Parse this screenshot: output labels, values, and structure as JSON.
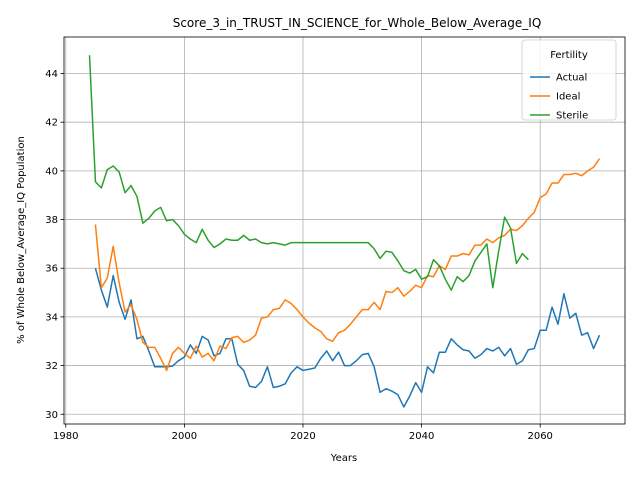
{
  "chart_data": {
    "type": "line",
    "title": "Score_3_in_TRUST_IN_SCIENCE_for_Whole_Below_Average_IQ",
    "xlabel": "Years",
    "ylabel": "% of Whole Below_Average_IQ Population",
    "xlim": [
      1979.7,
      2074.3
    ],
    "ylim": [
      29.6,
      45.5
    ],
    "xticks": [
      1980,
      2000,
      2020,
      2040,
      2060
    ],
    "yticks": [
      30,
      32,
      34,
      36,
      38,
      40,
      42,
      44
    ],
    "grid": true,
    "legend": {
      "title": "Fertility",
      "position": "upper right"
    },
    "series": [
      {
        "name": "Actual",
        "color": "#1f77b4",
        "x": [
          1985,
          1986,
          1987,
          1988,
          1989,
          1990,
          1991,
          1992,
          1993,
          1994,
          1995,
          1996,
          1997,
          1998,
          1999,
          2000,
          2001,
          2002,
          2003,
          2004,
          2005,
          2006,
          2007,
          2008,
          2009,
          2010,
          2011,
          2012,
          2013,
          2014,
          2015,
          2016,
          2017,
          2018,
          2019,
          2020,
          2021,
          2022,
          2023,
          2024,
          2025,
          2026,
          2027,
          2028,
          2029,
          2030,
          2031,
          2032,
          2033,
          2034,
          2035,
          2036,
          2037,
          2038,
          2039,
          2040,
          2041,
          2042,
          2043,
          2044,
          2045,
          2046,
          2047,
          2048,
          2049,
          2050,
          2051,
          2052,
          2053,
          2054,
          2055,
          2056,
          2057,
          2058,
          2059,
          2060,
          2061,
          2062,
          2063,
          2064,
          2065,
          2066,
          2067,
          2068,
          2069,
          2070
        ],
        "y": [
          36.0,
          35.1,
          34.4,
          35.7,
          34.6,
          33.9,
          34.7,
          33.1,
          33.2,
          32.6,
          31.95,
          31.95,
          31.95,
          31.98,
          32.2,
          32.35,
          32.85,
          32.5,
          33.2,
          33.05,
          32.4,
          32.5,
          33.1,
          33.1,
          32.05,
          31.8,
          31.15,
          31.1,
          31.35,
          31.95,
          31.1,
          31.15,
          31.25,
          31.7,
          31.95,
          31.8,
          31.85,
          31.9,
          32.3,
          32.6,
          32.2,
          32.55,
          32.0,
          32.0,
          32.2,
          32.45,
          32.5,
          31.95,
          30.9,
          31.05,
          30.95,
          30.8,
          30.3,
          30.75,
          31.3,
          30.9,
          31.95,
          31.7,
          32.55,
          32.55,
          33.1,
          32.85,
          32.65,
          32.6,
          32.3,
          32.45,
          32.7,
          32.6,
          32.75,
          32.4,
          32.7,
          32.05,
          32.2,
          32.65,
          32.7,
          33.45,
          33.45,
          34.4,
          33.7,
          34.95,
          33.95,
          34.15,
          33.25,
          33.35,
          32.7,
          33.25
        ]
      },
      {
        "name": "Ideal",
        "color": "#ff7f0e",
        "x": [
          1985,
          1986,
          1987,
          1988,
          1989,
          1990,
          1991,
          1992,
          1993,
          1994,
          1995,
          1996,
          1997,
          1998,
          1999,
          2000,
          2001,
          2002,
          2003,
          2004,
          2005,
          2006,
          2007,
          2008,
          2009,
          2010,
          2011,
          2012,
          2013,
          2014,
          2015,
          2016,
          2017,
          2018,
          2019,
          2020,
          2021,
          2022,
          2023,
          2024,
          2025,
          2026,
          2027,
          2028,
          2029,
          2030,
          2031,
          2032,
          2033,
          2034,
          2035,
          2036,
          2037,
          2038,
          2039,
          2040,
          2041,
          2042,
          2043,
          2044,
          2045,
          2046,
          2047,
          2048,
          2049,
          2050,
          2051,
          2052,
          2053,
          2054,
          2055,
          2056,
          2057,
          2058,
          2059,
          2060,
          2061,
          2062,
          2063,
          2064,
          2065,
          2066,
          2067,
          2068,
          2069,
          2070
        ],
        "y": [
          37.8,
          35.2,
          35.6,
          36.9,
          35.4,
          34.2,
          34.5,
          33.9,
          32.95,
          32.75,
          32.75,
          32.3,
          31.8,
          32.5,
          32.75,
          32.5,
          32.3,
          32.8,
          32.35,
          32.5,
          32.2,
          32.8,
          32.7,
          33.15,
          33.2,
          32.95,
          33.05,
          33.25,
          33.95,
          34.0,
          34.3,
          34.35,
          34.7,
          34.55,
          34.3,
          34.0,
          33.75,
          33.55,
          33.4,
          33.1,
          33.0,
          33.35,
          33.45,
          33.7,
          34.0,
          34.3,
          34.3,
          34.6,
          34.3,
          35.05,
          35.0,
          35.2,
          34.85,
          35.05,
          35.3,
          35.2,
          35.7,
          35.65,
          36.1,
          35.95,
          36.5,
          36.5,
          36.6,
          36.55,
          36.95,
          36.95,
          37.2,
          37.05,
          37.25,
          37.35,
          37.6,
          37.55,
          37.75,
          38.05,
          38.3,
          38.9,
          39.05,
          39.5,
          39.5,
          39.85,
          39.85,
          39.9,
          39.8,
          40.0,
          40.15,
          40.5
        ]
      },
      {
        "name": "Sterile",
        "color": "#2ca02c",
        "x": [
          1984,
          1985,
          1986,
          1987,
          1988,
          1989,
          1990,
          1991,
          1992,
          1993,
          1994,
          1995,
          1996,
          1997,
          1998,
          1999,
          2000,
          2001,
          2002,
          2003,
          2004,
          2005,
          2006,
          2007,
          2008,
          2009,
          2010,
          2011,
          2012,
          2013,
          2014,
          2015,
          2016,
          2017,
          2018,
          2019,
          2020,
          2021,
          2022,
          2023,
          2024,
          2025,
          2026,
          2027,
          2028,
          2029,
          2030,
          2031,
          2032,
          2033,
          2034,
          2035,
          2036,
          2037,
          2038,
          2039,
          2040,
          2041,
          2042,
          2043,
          2044,
          2045,
          2046,
          2047,
          2048,
          2049,
          2050,
          2051,
          2052,
          2053,
          2054,
          2055,
          2056,
          2057,
          2058
        ],
        "y": [
          44.75,
          39.55,
          39.3,
          40.05,
          40.2,
          39.95,
          39.1,
          39.4,
          38.95,
          37.85,
          38.05,
          38.35,
          38.5,
          37.95,
          38.0,
          37.75,
          37.4,
          37.2,
          37.05,
          37.6,
          37.15,
          36.85,
          37.0,
          37.2,
          37.15,
          37.15,
          37.35,
          37.15,
          37.2,
          37.05,
          37.0,
          37.05,
          37.0,
          36.95,
          37.05,
          37.05,
          37.05,
          37.05,
          37.05,
          37.05,
          37.05,
          37.05,
          37.05,
          37.05,
          37.05,
          37.05,
          37.05,
          37.05,
          36.8,
          36.4,
          36.7,
          36.65,
          36.3,
          35.9,
          35.8,
          35.95,
          35.55,
          35.65,
          36.35,
          36.1,
          35.55,
          35.1,
          35.65,
          35.45,
          35.7,
          36.3,
          36.65,
          37.0,
          35.2,
          36.7,
          38.1,
          37.65,
          36.2,
          36.6,
          36.35
        ]
      }
    ]
  }
}
